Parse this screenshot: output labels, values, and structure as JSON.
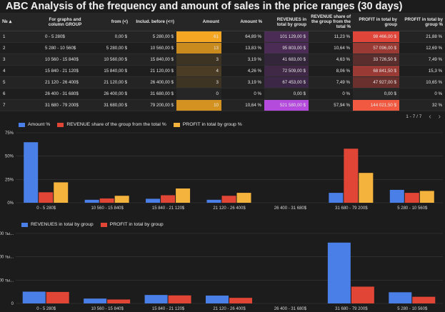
{
  "title": "ABC  Analysis of the frequency and amount of sales in the price ranges (30 days)",
  "table": {
    "headers": [
      "№ ▴",
      "For graphs and column GROUP",
      "from (<)",
      "Includ. before (<=)",
      "Amount",
      "Amount %",
      "REVENUES in total by group",
      "REVENUE share of the group from the total %",
      "PROFIT in total by group",
      "PROFIT in total by group %"
    ],
    "rows": [
      [
        "1",
        "0 - 5 280$",
        "0,00 $",
        "5 280,00 $",
        "61",
        "64,89 %",
        "101 129,00 $",
        "11,23 %",
        "98 466,00 $",
        "21,88 %"
      ],
      [
        "2",
        "5 280 - 10 560$",
        "5 280,00 $",
        "10 560,00 $",
        "13",
        "13,83 %",
        "95 803,00 $",
        "10,64 %",
        "57 096,00 $",
        "12,69 %"
      ],
      [
        "3",
        "10 560 - 15 840$",
        "10 560,00 $",
        "15 840,00 $",
        "3",
        "3,19 %",
        "41 683,00 $",
        "4,63 %",
        "33 726,50 $",
        "7,49 %"
      ],
      [
        "4",
        "15 840 - 21 120$",
        "15 840,00 $",
        "21 120,00 $",
        "4",
        "4,26 %",
        "72 509,00 $",
        "8,06 %",
        "68 841,50 $",
        "15,3 %"
      ],
      [
        "5",
        "21 120 - 26 400$",
        "21 120,00 $",
        "26 400,00 $",
        "3",
        "3,19 %",
        "67 453,00 $",
        "7,49 %",
        "47 927,00 $",
        "10,65 %"
      ],
      [
        "6",
        "26 400 - 31 680$",
        "26 400,00 $",
        "31 680,00 $",
        "0",
        "0 %",
        "0,00 $",
        "0 %",
        "0,00 $",
        "0 %"
      ],
      [
        "7",
        "31 680 - 79 200$",
        "31 680,00 $",
        "79 200,00 $",
        "10",
        "10,64 %",
        "521 580,00 $",
        "57,94 %",
        "144 021,50 $",
        "32 %"
      ]
    ],
    "heat": {
      "amount": [
        "#f5a623",
        "#c98a1e",
        "#3e3424",
        "#4a3c25",
        "#3e3424",
        "#262626",
        "#d49220"
      ],
      "revenue": [
        "#4a2c55",
        "#4a2c55",
        "#33263a",
        "#3f2947",
        "#3c2846",
        "#262626",
        "#b44bdc"
      ],
      "profit": [
        "#e0453a",
        "#9a3a34",
        "#5a2e2c",
        "#9a3a34",
        "#6a302d",
        "#262626",
        "#f15a40"
      ]
    }
  },
  "pager": {
    "text": "1 - 7 / 7",
    "prev": "‹",
    "next": "›"
  },
  "colors": {
    "blue": "#4a7fe8",
    "red": "#e04535",
    "yellow": "#f4b33c",
    "grid": "#3a3a3a"
  },
  "chart_data": [
    {
      "type": "bar",
      "categories": [
        "0 - 5 280$",
        "10 560 - 15 840$",
        "15 840 - 21 120$",
        "21 120 - 26 400$",
        "26 400 - 31 680$",
        "31 680 - 79 200$",
        "5 280 - 10 560$"
      ],
      "series": [
        {
          "name": "Amount %",
          "values": [
            64.89,
            3.19,
            4.26,
            3.19,
            0,
            10.64,
            13.83
          ]
        },
        {
          "name": "REVENUE share of the group from the total %",
          "values": [
            11.23,
            4.63,
            8.06,
            7.49,
            0,
            57.94,
            10.64
          ]
        },
        {
          "name": "PROFIT in total by group %",
          "values": [
            21.88,
            7.49,
            15.3,
            10.65,
            0,
            32,
            12.69
          ]
        }
      ],
      "yticks": [
        "0%",
        "25%",
        "50%",
        "75%"
      ],
      "ylim": [
        0,
        75
      ]
    },
    {
      "type": "bar",
      "categories": [
        "0 - 5 280$",
        "10 560 - 15 840$",
        "15 840 - 21 120$",
        "21 120 - 26 400$",
        "26 400 - 31 680$",
        "31 680 - 79 200$",
        "5 280 - 10 560$"
      ],
      "series": [
        {
          "name": "REVENUES in total by group",
          "values": [
            101129,
            41683,
            72509,
            67453,
            0,
            521580,
            95803
          ]
        },
        {
          "name": "PROFIT in total by group",
          "values": [
            98466,
            33726.5,
            68841.5,
            47927,
            0,
            144021.5,
            57096
          ]
        }
      ],
      "yticks": [
        "0",
        "200 ты...",
        "400 ты...",
        "600 ты..."
      ],
      "ylim": [
        0,
        600000
      ]
    }
  ]
}
